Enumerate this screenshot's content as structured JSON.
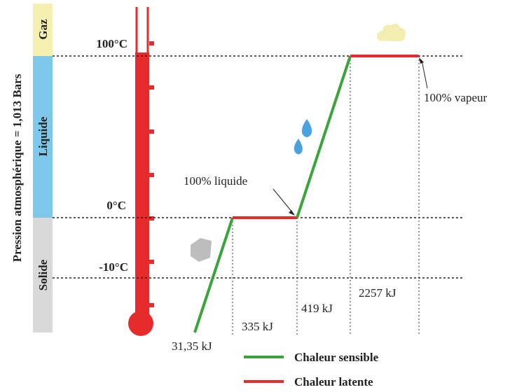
{
  "axis_title": "Pression atmosphérique = 1,013 Bars",
  "phases": [
    "Gaz",
    "Liquide",
    "Solide"
  ],
  "temperatures": [
    "100°C",
    "0°C",
    "-10°C"
  ],
  "annotations": {
    "vapor": "100% vapeur",
    "liquid": "100% liquide"
  },
  "energies": [
    "31,35 kJ",
    "335 kJ",
    "419 kJ",
    "2257 kJ"
  ],
  "legend": [
    "Chaleur sensible",
    "Chaleur latente"
  ]
}
